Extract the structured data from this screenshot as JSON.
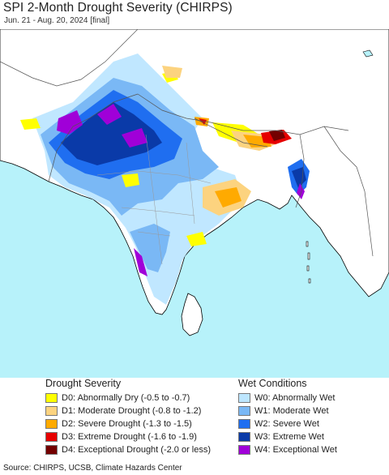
{
  "title": "SPI 2-Month Drought Severity (CHIRPS)",
  "subtitle": "Jun. 21 - Aug. 20, 2024 [final]",
  "colors": {
    "ocean": "#b7f2fa",
    "land": "#ffffff",
    "border": "#7a7a7a",
    "coast": "#000000"
  },
  "legend": {
    "drought": {
      "heading": "Drought Severity",
      "items": [
        {
          "code": "D0",
          "label": "D0: Abnormally Dry (-0.5 to -0.7)",
          "color": "#ffff00"
        },
        {
          "code": "D1",
          "label": "D1: Moderate Drought (-0.8 to -1.2)",
          "color": "#fcd37f"
        },
        {
          "code": "D2",
          "label": "D2: Severe Drought (-1.3 to -1.5)",
          "color": "#ffaa00"
        },
        {
          "code": "D3",
          "label": "D3: Extreme Drought (-1.6 to -1.9)",
          "color": "#e60000"
        },
        {
          "code": "D4",
          "label": "D4: Exceptional Drought (-2.0 or less)",
          "color": "#730000"
        }
      ]
    },
    "wet": {
      "heading": "Wet Conditions",
      "items": [
        {
          "code": "W0",
          "label": "W0: Abnormally Wet",
          "color": "#bde6ff"
        },
        {
          "code": "W1",
          "label": "W1: Moderate Wet",
          "color": "#7ab8f5"
        },
        {
          "code": "W2",
          "label": "W2: Severe Wet",
          "color": "#1f6ef0"
        },
        {
          "code": "W3",
          "label": "W3: Extreme Wet",
          "color": "#0a3aa8"
        },
        {
          "code": "W4",
          "label": "W4: Exceptional Wet",
          "color": "#a000d8"
        }
      ]
    }
  },
  "source": "Source: CHIRPS, UCSB, Climate Hazards Center"
}
